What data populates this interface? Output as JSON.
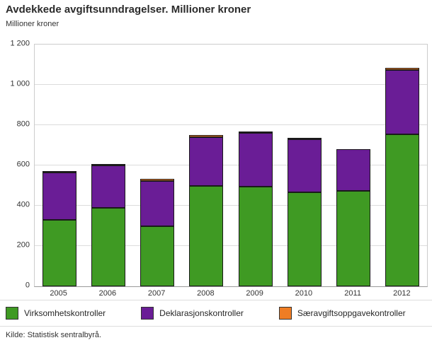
{
  "chart_data": {
    "type": "bar",
    "stacked": true,
    "title": "Avdekkede avgiftsunndragelser. Millioner kroner",
    "ylabel": "Millioner kroner",
    "xlabel": "",
    "categories": [
      "2005",
      "2006",
      "2007",
      "2008",
      "2009",
      "2010",
      "2011",
      "2012"
    ],
    "series": [
      {
        "name": "Virksomhetskontroller",
        "color": "#3f9a23",
        "values": [
          330,
          388,
          298,
          500,
          495,
          468,
          472,
          753
        ]
      },
      {
        "name": "Deklarasjonskontroller",
        "color": "#6a1d96",
        "values": [
          235,
          212,
          226,
          240,
          266,
          262,
          208,
          320
        ]
      },
      {
        "name": "Særavgiftsoppgavekontroller",
        "color": "#ef7d24",
        "values": [
          8,
          8,
          10,
          12,
          8,
          6,
          0,
          12
        ]
      }
    ],
    "ylim": [
      0,
      1200
    ],
    "yticks": [
      {
        "value": 0,
        "label": "0"
      },
      {
        "value": 200,
        "label": "200"
      },
      {
        "value": 400,
        "label": "400"
      },
      {
        "value": 600,
        "label": "600"
      },
      {
        "value": 800,
        "label": "800"
      },
      {
        "value": 1000,
        "label": "1 000"
      },
      {
        "value": 1200,
        "label": "1 200"
      }
    ],
    "grid": true,
    "legend_position": "bottom"
  },
  "footer": {
    "source": "Kilde: Statistisk sentralbyrå."
  }
}
